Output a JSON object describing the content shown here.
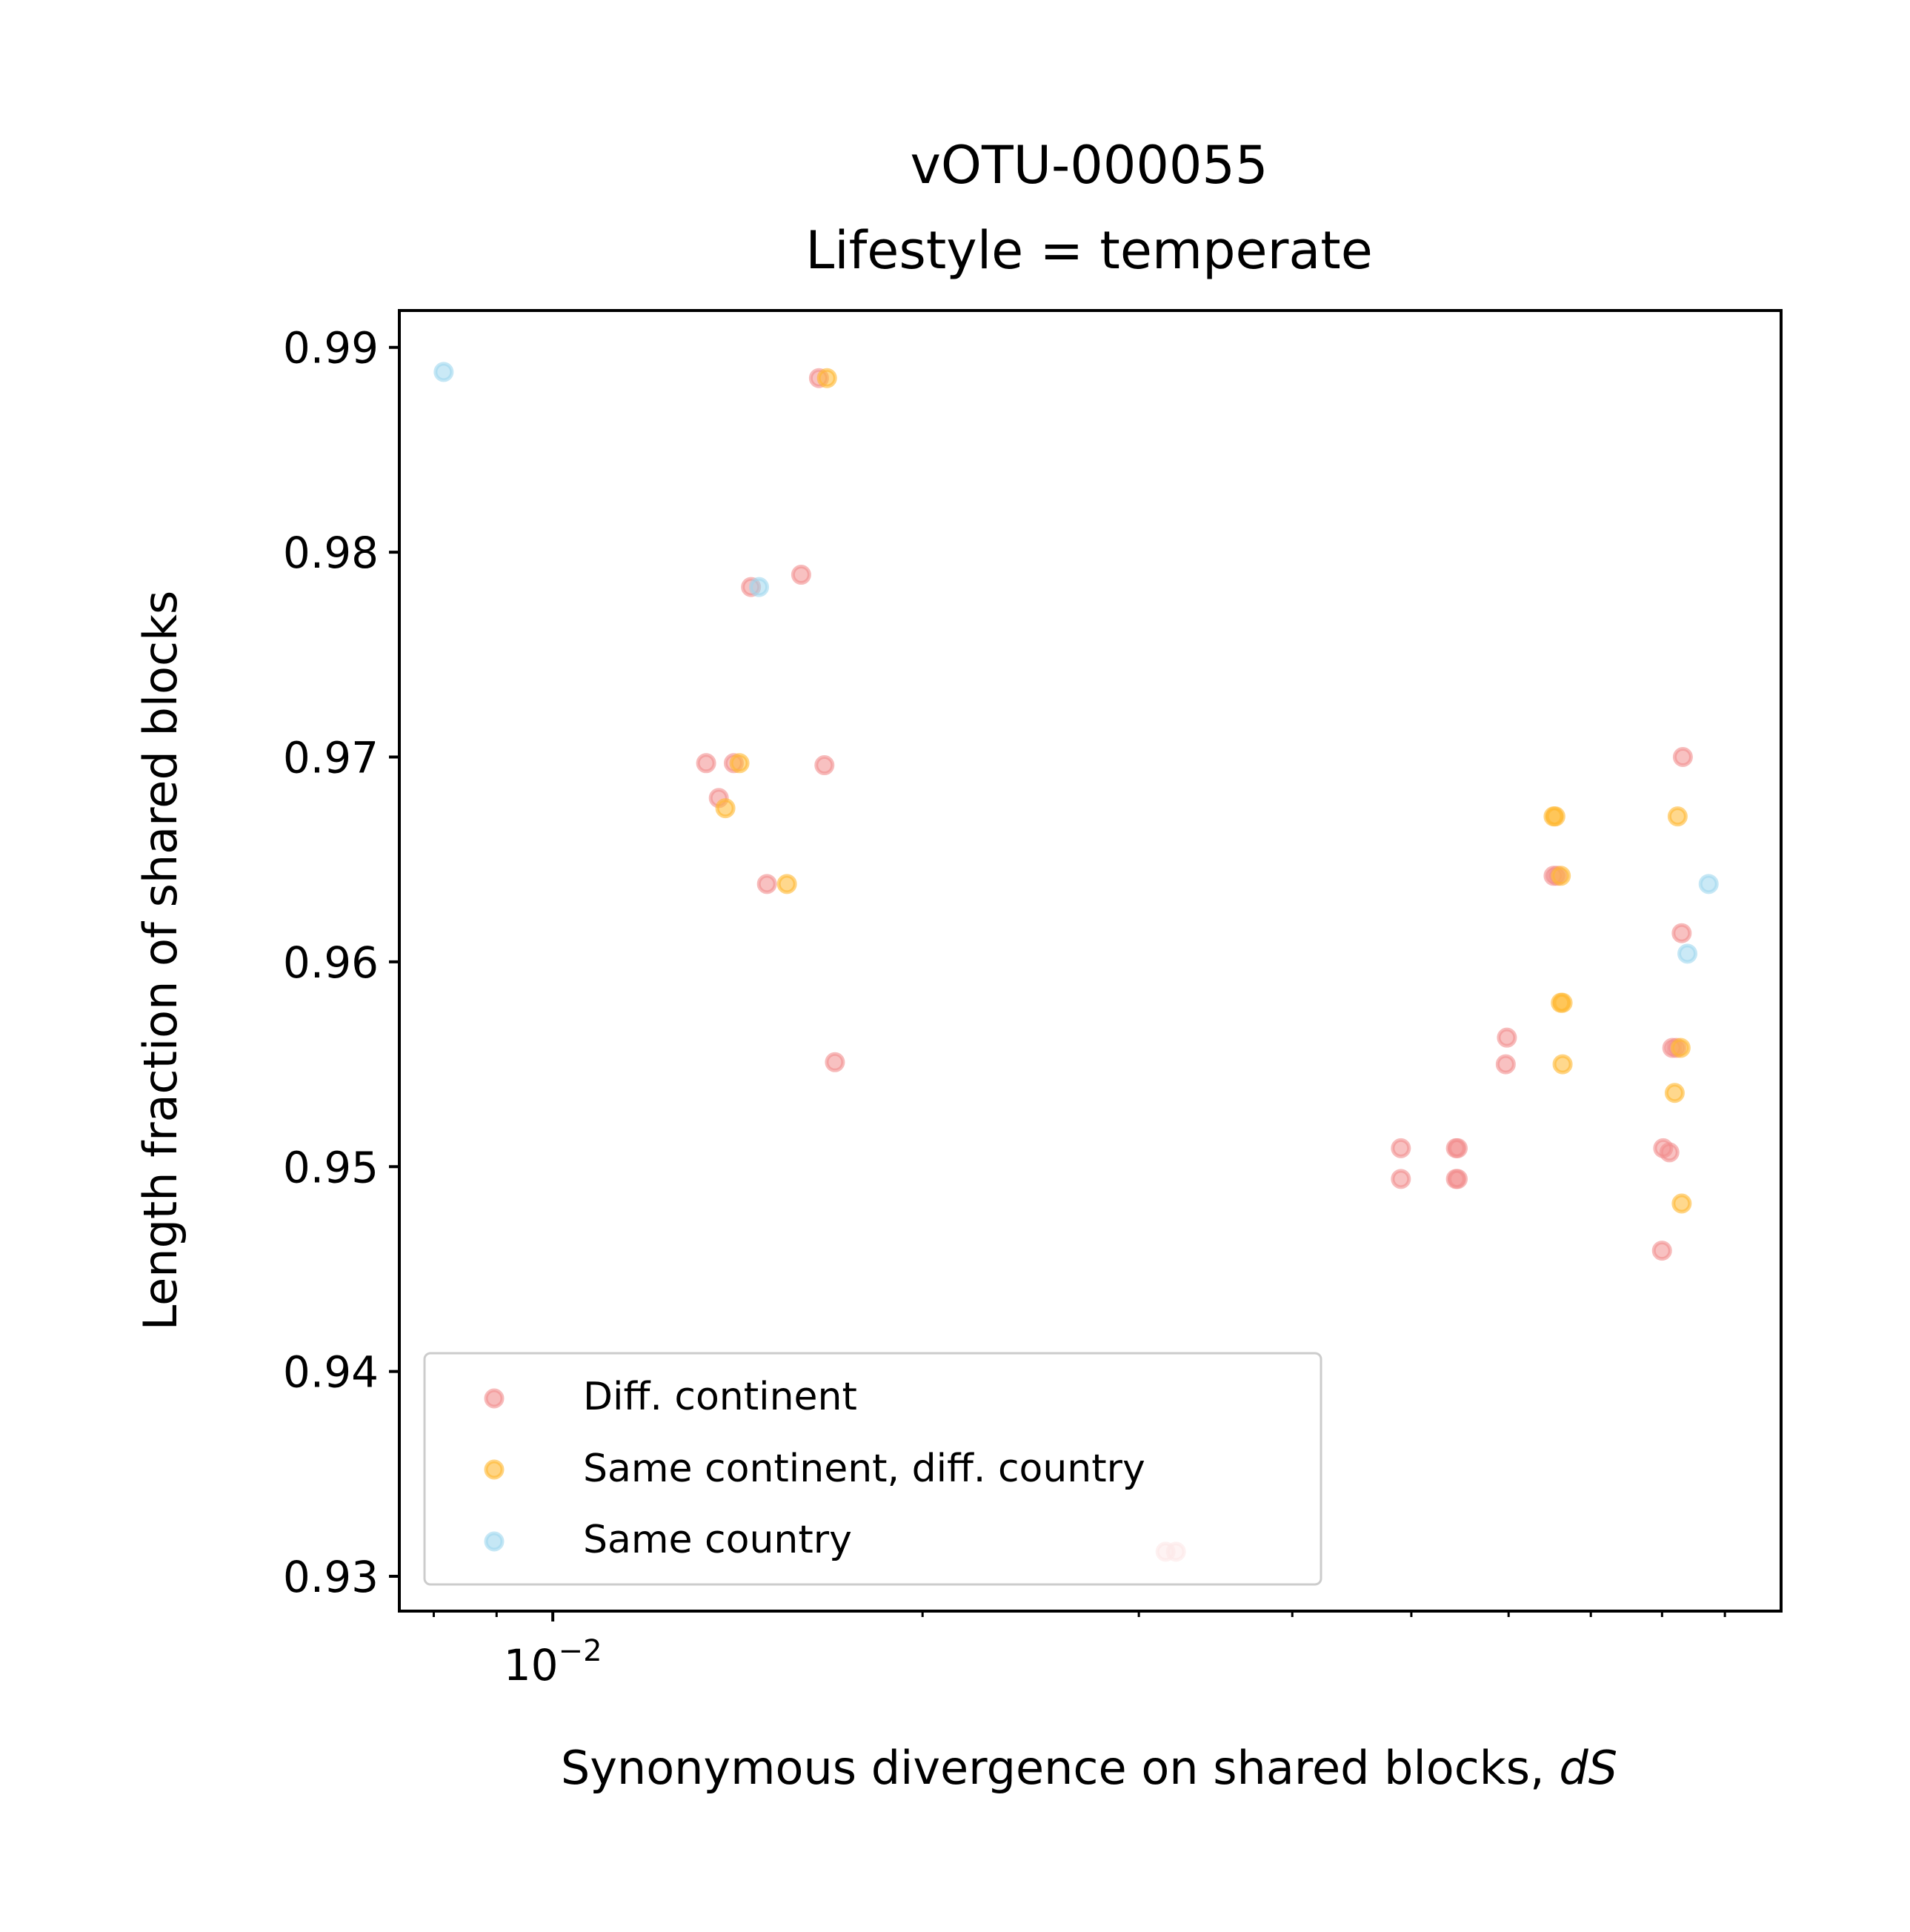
{
  "chart_data": {
    "type": "scatter",
    "title": "vOTU-000055",
    "subtitle": "Lifestyle = temperate",
    "xlabel": "Synonymous divergence on shared blocks, ",
    "xlabel_italic": "dS",
    "ylabel": "Length fraction of shared blocks",
    "x_scale": "log",
    "xlim": [
      0.0075,
      0.1
    ],
    "ylim": [
      0.9283,
      0.9918
    ],
    "x_ticks": [
      {
        "value": 0.01,
        "base": "10",
        "exponent": "−2"
      }
    ],
    "y_ticks": [
      {
        "value": 0.93,
        "label": "0.93"
      },
      {
        "value": 0.94,
        "label": "0.94"
      },
      {
        "value": 0.95,
        "label": "0.95"
      },
      {
        "value": 0.96,
        "label": "0.96"
      },
      {
        "value": 0.97,
        "label": "0.97"
      },
      {
        "value": 0.98,
        "label": "0.98"
      },
      {
        "value": 0.99,
        "label": "0.99"
      }
    ],
    "grid": false,
    "legend_position": "lower-left",
    "series": [
      {
        "name": "Diff. continent",
        "color": "#f28e8e",
        "points": [
          [
            0.01647,
            0.9885
          ],
          [
            0.0145,
            0.9783
          ],
          [
            0.01593,
            0.9789
          ],
          [
            0.01333,
            0.9697
          ],
          [
            0.01404,
            0.9697
          ],
          [
            0.01664,
            0.9696
          ],
          [
            0.01365,
            0.968
          ],
          [
            0.01494,
            0.9638
          ],
          [
            0.01697,
            0.9551
          ],
          [
            0.03154,
            0.9312
          ],
          [
            0.03216,
            0.9312
          ],
          [
            0.04903,
            0.9509
          ],
          [
            0.04903,
            0.9494
          ],
          [
            0.05436,
            0.9509
          ],
          [
            0.05454,
            0.9509
          ],
          [
            0.05436,
            0.9494
          ],
          [
            0.05454,
            0.9494
          ],
          [
            0.05981,
            0.9563
          ],
          [
            0.05968,
            0.955
          ],
          [
            0.06528,
            0.9642
          ],
          [
            0.06572,
            0.9642
          ],
          [
            0.08318,
            0.97
          ],
          [
            0.083,
            0.9614
          ],
          [
            0.08155,
            0.9558
          ],
          [
            0.08219,
            0.9558
          ],
          [
            0.08017,
            0.9509
          ],
          [
            0.08111,
            0.9507
          ],
          [
            0.07999,
            0.9459
          ]
        ]
      },
      {
        "name": "Same continent, diff. country",
        "color": "#ffb830",
        "points": [
          [
            0.01672,
            0.9885
          ],
          [
            0.01419,
            0.9697
          ],
          [
            0.01382,
            0.9675
          ],
          [
            0.01551,
            0.9638
          ],
          [
            0.06528,
            0.9671
          ],
          [
            0.0655,
            0.9671
          ],
          [
            0.06617,
            0.9642
          ],
          [
            0.06617,
            0.958
          ],
          [
            0.06639,
            0.958
          ],
          [
            0.06639,
            0.955
          ],
          [
            0.08237,
            0.9671
          ],
          [
            0.08283,
            0.9558
          ],
          [
            0.08192,
            0.9536
          ],
          [
            0.083,
            0.9482
          ]
        ]
      },
      {
        "name": "Same country",
        "color": "#9ed7ef",
        "points": [
          [
            0.00815,
            0.9888
          ],
          [
            0.01472,
            0.9783
          ],
          [
            0.0873,
            0.9638
          ],
          [
            0.08389,
            0.9604
          ]
        ]
      }
    ]
  }
}
